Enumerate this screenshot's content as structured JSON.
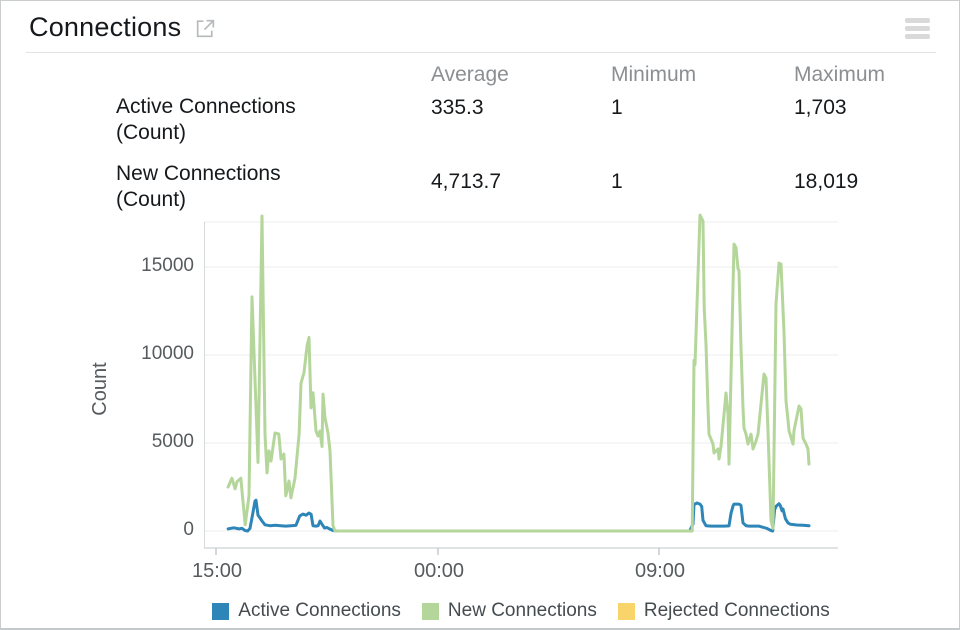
{
  "header": {
    "title": "Connections",
    "open_icon": "external-link-icon",
    "menu_icon": "hamburger-icon"
  },
  "stats": {
    "columns": [
      "Average",
      "Minimum",
      "Maximum"
    ],
    "rows": [
      {
        "label": "Active Connections",
        "unit": "(Count)",
        "average": "335.3",
        "minimum": "1",
        "maximum": "1,703"
      },
      {
        "label": "New Connections",
        "unit": "(Count)",
        "average": "4,713.7",
        "minimum": "1",
        "maximum": "18,019"
      }
    ]
  },
  "chart_data": {
    "type": "line",
    "title": "",
    "xlabel": "",
    "ylabel": "Count",
    "ylim": [
      0,
      17600
    ],
    "grid": true,
    "legend_position": "bottom",
    "yticks": [
      0,
      5000,
      10000,
      15000
    ],
    "ytick_labels": [
      "0",
      "5000",
      "10000",
      "15000"
    ],
    "xticks": [
      {
        "label": "15:00",
        "pos": 0.0189
      },
      {
        "label": "00:00",
        "pos": 0.3691
      },
      {
        "label": "09:00",
        "pos": 0.7177
      }
    ],
    "colors": {
      "active": "#2e86b8",
      "new": "#b5d69a",
      "rejected": "#f9d46a"
    },
    "series": [
      {
        "name": "Active Connections",
        "color": "#2e86b8",
        "points": [
          [
            0.038,
            120
          ],
          [
            0.047,
            180
          ],
          [
            0.055,
            120
          ],
          [
            0.06,
            150
          ],
          [
            0.0647,
            30
          ],
          [
            0.069,
            0
          ],
          [
            0.0726,
            150
          ],
          [
            0.077,
            1000
          ],
          [
            0.0805,
            1700
          ],
          [
            0.082,
            1750
          ],
          [
            0.0852,
            900
          ],
          [
            0.0883,
            740
          ],
          [
            0.0915,
            570
          ],
          [
            0.0962,
            350
          ],
          [
            0.104,
            300
          ],
          [
            0.113,
            330
          ],
          [
            0.121,
            300
          ],
          [
            0.129,
            280
          ],
          [
            0.137,
            300
          ],
          [
            0.145,
            320
          ],
          [
            0.151,
            850
          ],
          [
            0.156,
            960
          ],
          [
            0.161,
            900
          ],
          [
            0.1656,
            1020
          ],
          [
            0.169,
            950
          ],
          [
            0.172,
            300
          ],
          [
            0.177,
            280
          ],
          [
            0.18,
            300
          ],
          [
            0.183,
            570
          ],
          [
            0.186,
            400
          ],
          [
            0.19,
            170
          ],
          [
            0.194,
            200
          ],
          [
            0.198,
            120
          ],
          [
            0.2035,
            30
          ],
          [
            0.21,
            0
          ],
          [
            0.45,
            0
          ],
          [
            0.766,
            0
          ],
          [
            0.7713,
            400
          ],
          [
            0.7729,
            1500
          ],
          [
            0.7776,
            1590
          ],
          [
            0.7823,
            1530
          ],
          [
            0.785,
            1400
          ],
          [
            0.787,
            600
          ],
          [
            0.7918,
            300
          ],
          [
            0.8,
            280
          ],
          [
            0.81,
            280
          ],
          [
            0.82,
            280
          ],
          [
            0.828,
            290
          ],
          [
            0.8313,
            1000
          ],
          [
            0.8344,
            1420
          ],
          [
            0.836,
            1530
          ],
          [
            0.8423,
            1530
          ],
          [
            0.8454,
            1500
          ],
          [
            0.847,
            1450
          ],
          [
            0.8502,
            460
          ],
          [
            0.855,
            300
          ],
          [
            0.86,
            280
          ],
          [
            0.875,
            280
          ],
          [
            0.888,
            150
          ],
          [
            0.8943,
            20
          ],
          [
            0.897,
            0
          ],
          [
            0.9,
            1200
          ],
          [
            0.9022,
            1400
          ],
          [
            0.907,
            1550
          ],
          [
            0.909,
            1450
          ],
          [
            0.9117,
            1150
          ],
          [
            0.9133,
            1250
          ],
          [
            0.917,
            700
          ],
          [
            0.9211,
            460
          ],
          [
            0.925,
            380
          ],
          [
            0.935,
            340
          ],
          [
            0.945,
            330
          ],
          [
            0.9543,
            300
          ]
        ]
      },
      {
        "name": "New Connections",
        "color": "#b5d69a",
        "points": [
          [
            0.038,
            2500
          ],
          [
            0.044,
            3000
          ],
          [
            0.049,
            2400
          ],
          [
            0.052,
            2800
          ],
          [
            0.058,
            3000
          ],
          [
            0.065,
            350
          ],
          [
            0.071,
            2000
          ],
          [
            0.0757,
            13300
          ],
          [
            0.0852,
            3900
          ],
          [
            0.0915,
            17900
          ],
          [
            0.0962,
            5500
          ],
          [
            0.0994,
            3300
          ],
          [
            0.1025,
            4550
          ],
          [
            0.1057,
            3980
          ],
          [
            0.112,
            5570
          ],
          [
            0.118,
            5510
          ],
          [
            0.1215,
            4090
          ],
          [
            0.126,
            4370
          ],
          [
            0.129,
            2000
          ],
          [
            0.134,
            2840
          ],
          [
            0.137,
            1880
          ],
          [
            0.1435,
            3000
          ],
          [
            0.15,
            5500
          ],
          [
            0.153,
            8400
          ],
          [
            0.1577,
            9000
          ],
          [
            0.1625,
            10500
          ],
          [
            0.1656,
            11000
          ],
          [
            0.1688,
            7000
          ],
          [
            0.1719,
            7860
          ],
          [
            0.1767,
            5680
          ],
          [
            0.1798,
            5400
          ],
          [
            0.183,
            5680
          ],
          [
            0.1861,
            4800
          ],
          [
            0.1877,
            7780
          ],
          [
            0.1909,
            6430
          ],
          [
            0.1956,
            5570
          ],
          [
            0.1987,
            4550
          ],
          [
            0.2035,
            300
          ],
          [
            0.2066,
            0
          ],
          [
            0.35,
            0
          ],
          [
            0.55,
            0
          ],
          [
            0.77,
            0
          ],
          [
            0.7729,
            9700
          ],
          [
            0.7745,
            9450
          ],
          [
            0.7823,
            17950
          ],
          [
            0.787,
            17600
          ],
          [
            0.789,
            12700
          ],
          [
            0.7918,
            10600
          ],
          [
            0.795,
            7000
          ],
          [
            0.7966,
            5500
          ],
          [
            0.8028,
            4940
          ],
          [
            0.8044,
            4430
          ],
          [
            0.811,
            4660
          ],
          [
            0.8123,
            4090
          ],
          [
            0.8155,
            4800
          ],
          [
            0.8234,
            7840
          ],
          [
            0.8265,
            6650
          ],
          [
            0.8281,
            3800
          ],
          [
            0.836,
            16300
          ],
          [
            0.8391,
            16100
          ],
          [
            0.8423,
            14900
          ],
          [
            0.8438,
            14800
          ],
          [
            0.847,
            10400
          ],
          [
            0.8502,
            7000
          ],
          [
            0.8517,
            5850
          ],
          [
            0.8549,
            5500
          ],
          [
            0.8581,
            4940
          ],
          [
            0.8628,
            5500
          ],
          [
            0.866,
            4660
          ],
          [
            0.8707,
            5110
          ],
          [
            0.8738,
            5500
          ],
          [
            0.8833,
            8920
          ],
          [
            0.8864,
            8700
          ],
          [
            0.8896,
            5680
          ],
          [
            0.8943,
            600
          ],
          [
            0.8975,
            150
          ],
          [
            0.9022,
            12900
          ],
          [
            0.907,
            15220
          ],
          [
            0.9101,
            15160
          ],
          [
            0.9148,
            11300
          ],
          [
            0.918,
            7400
          ],
          [
            0.9211,
            6300
          ],
          [
            0.9227,
            5700
          ],
          [
            0.929,
            4940
          ],
          [
            0.9306,
            5700
          ],
          [
            0.9385,
            7100
          ],
          [
            0.9416,
            6930
          ],
          [
            0.9448,
            5280
          ],
          [
            0.9495,
            4940
          ],
          [
            0.9527,
            4660
          ],
          [
            0.9543,
            3800
          ]
        ]
      },
      {
        "name": "Rejected Connections",
        "color": "#f9d46a",
        "points": []
      }
    ]
  }
}
